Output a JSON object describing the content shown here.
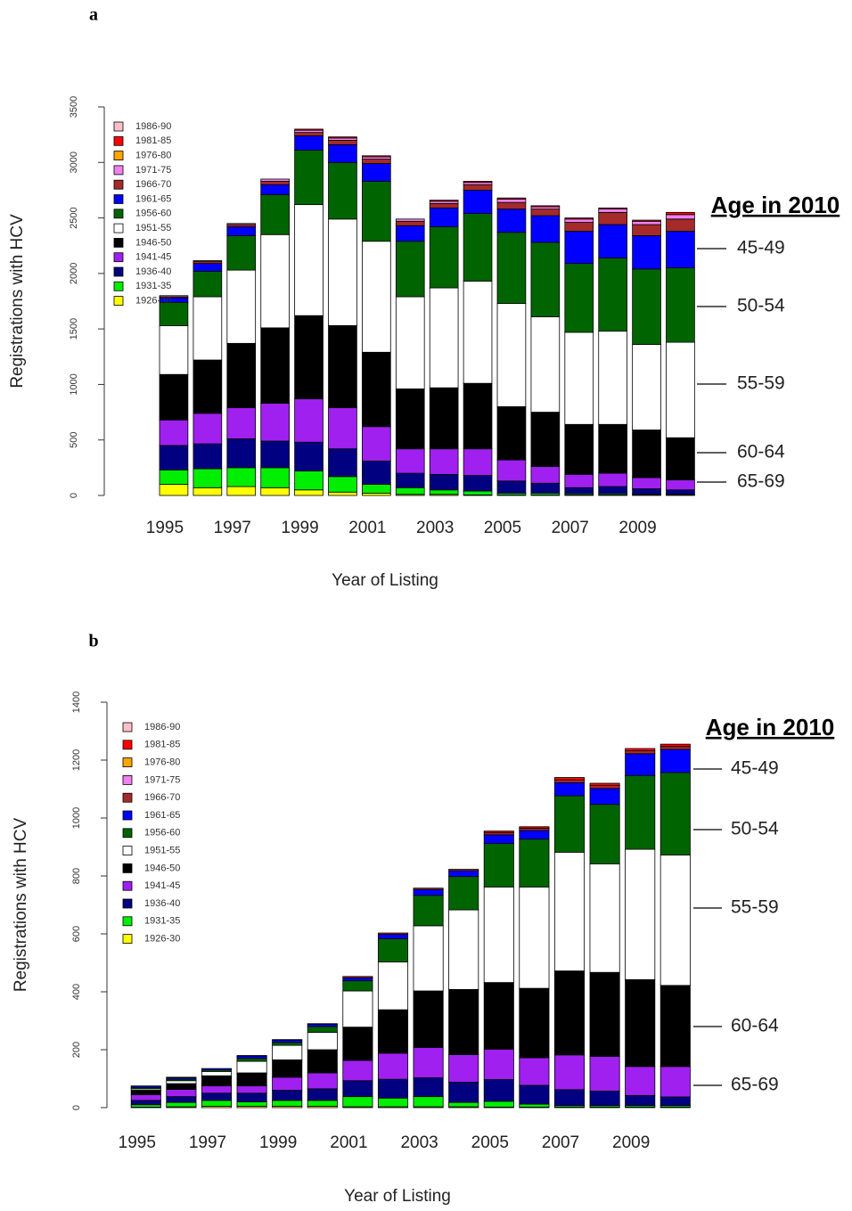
{
  "chart_data": [
    {
      "type": "bar",
      "stacked": true,
      "title": "a",
      "y_label": "Registrations with HCV",
      "x_label": "Year of Listing",
      "categories": [
        "1995",
        null,
        "1997",
        null,
        "1999",
        null,
        "2001",
        null,
        "2003",
        null,
        "2005",
        null,
        "2007",
        null,
        "2009",
        null
      ],
      "ylim": [
        0,
        3500
      ],
      "yticks": [
        0,
        500,
        1000,
        1500,
        2000,
        2500,
        3000,
        3500
      ],
      "annotation_title": "Age in 2010",
      "annotations": [
        "45-49",
        "50-54",
        "55-59",
        "60-64",
        "65-69"
      ],
      "series": [
        {
          "name": "1926-30",
          "color": "#ffff00",
          "values": [
            100,
            70,
            80,
            70,
            50,
            30,
            20,
            10,
            10,
            5,
            5,
            5,
            5,
            5,
            5,
            5
          ]
        },
        {
          "name": "1931-35",
          "color": "#00ee00",
          "values": [
            130,
            170,
            170,
            180,
            170,
            140,
            80,
            60,
            40,
            35,
            15,
            15,
            10,
            10,
            5,
            5
          ]
        },
        {
          "name": "1936-40",
          "color": "#000080",
          "values": [
            220,
            225,
            260,
            240,
            260,
            250,
            210,
            130,
            140,
            140,
            110,
            90,
            55,
            65,
            50,
            40
          ]
        },
        {
          "name": "1941-45",
          "color": "#a020f0",
          "values": [
            230,
            275,
            280,
            340,
            390,
            370,
            310,
            220,
            230,
            240,
            190,
            150,
            120,
            120,
            100,
            90
          ]
        },
        {
          "name": "1946-50",
          "color": "#000000",
          "values": [
            410,
            480,
            580,
            680,
            750,
            740,
            670,
            540,
            550,
            590,
            480,
            490,
            450,
            440,
            430,
            380
          ]
        },
        {
          "name": "1951-55",
          "color": "#ffffff",
          "values": [
            440,
            570,
            660,
            840,
            1000,
            960,
            1000,
            830,
            900,
            920,
            930,
            860,
            830,
            840,
            770,
            860
          ]
        },
        {
          "name": "1956-60",
          "color": "#006400",
          "values": [
            210,
            230,
            310,
            360,
            490,
            510,
            540,
            500,
            550,
            610,
            640,
            670,
            620,
            660,
            680,
            670
          ]
        },
        {
          "name": "1961-65",
          "color": "#0000ff",
          "values": [
            40,
            70,
            80,
            90,
            130,
            160,
            160,
            140,
            170,
            210,
            210,
            240,
            290,
            300,
            300,
            330
          ]
        },
        {
          "name": "1966-70",
          "color": "#a52a2a",
          "values": [
            10,
            20,
            20,
            30,
            30,
            40,
            40,
            40,
            40,
            50,
            60,
            60,
            80,
            110,
            100,
            110
          ]
        },
        {
          "name": "1971-75",
          "color": "#ee82ee",
          "values": [
            10,
            5,
            10,
            20,
            20,
            20,
            20,
            20,
            20,
            20,
            30,
            20,
            30,
            30,
            30,
            40
          ]
        },
        {
          "name": "1976-80",
          "color": "#ffa500",
          "values": [
            0,
            0,
            0,
            0,
            0,
            0,
            0,
            0,
            0,
            0,
            0,
            0,
            0,
            0,
            0,
            0
          ]
        },
        {
          "name": "1981-85",
          "color": "#ff0000",
          "values": [
            0,
            0,
            0,
            0,
            10,
            10,
            10,
            0,
            10,
            10,
            10,
            10,
            10,
            10,
            10,
            20
          ]
        },
        {
          "name": "1986-90",
          "color": "#ffc0cb",
          "values": [
            0,
            0,
            0,
            0,
            0,
            0,
            0,
            0,
            0,
            0,
            0,
            0,
            0,
            0,
            0,
            0
          ]
        }
      ]
    },
    {
      "type": "bar",
      "stacked": true,
      "title": "b",
      "y_label": "Registrations with HCV",
      "x_label": "Year of Listing",
      "categories": [
        "1995",
        null,
        "1997",
        null,
        "1999",
        null,
        "2001",
        null,
        "2003",
        null,
        "2005",
        null,
        "2007",
        null,
        "2009",
        null
      ],
      "ylim": [
        0,
        1400
      ],
      "yticks": [
        0,
        200,
        400,
        600,
        800,
        1000,
        1200,
        1400
      ],
      "annotation_title": "Age in 2010",
      "annotations": [
        "45-49",
        "50-54",
        "55-59",
        "60-64",
        "65-69"
      ],
      "series": [
        {
          "name": "1926-30",
          "color": "#ffff00",
          "values": [
            2,
            3,
            5,
            5,
            5,
            5,
            3,
            3,
            3,
            3,
            2,
            2,
            2,
            2,
            2,
            2
          ]
        },
        {
          "name": "1931-35",
          "color": "#00ee00",
          "values": [
            8,
            15,
            20,
            15,
            20,
            20,
            35,
            30,
            35,
            15,
            20,
            10,
            5,
            5,
            5,
            5
          ]
        },
        {
          "name": "1936-40",
          "color": "#000080",
          "values": [
            15,
            20,
            25,
            30,
            35,
            40,
            55,
            65,
            65,
            70,
            75,
            65,
            55,
            50,
            35,
            30
          ]
        },
        {
          "name": "1941-45",
          "color": "#a020f0",
          "values": [
            20,
            25,
            25,
            25,
            45,
            55,
            70,
            90,
            105,
            95,
            105,
            95,
            120,
            120,
            100,
            105
          ]
        },
        {
          "name": "1946-50",
          "color": "#000000",
          "values": [
            15,
            20,
            35,
            45,
            60,
            80,
            115,
            150,
            195,
            225,
            230,
            240,
            290,
            290,
            300,
            280
          ]
        },
        {
          "name": "1951-55",
          "color": "#ffffff",
          "values": [
            5,
            10,
            15,
            40,
            50,
            60,
            125,
            165,
            225,
            275,
            330,
            350,
            410,
            375,
            450,
            450
          ]
        },
        {
          "name": "1956-60",
          "color": "#006400",
          "values": [
            5,
            5,
            5,
            10,
            10,
            20,
            35,
            80,
            105,
            115,
            150,
            165,
            195,
            205,
            255,
            285
          ]
        },
        {
          "name": "1961-65",
          "color": "#0000ff",
          "values": [
            5,
            5,
            5,
            8,
            8,
            8,
            10,
            15,
            20,
            20,
            30,
            30,
            45,
            55,
            75,
            80
          ]
        },
        {
          "name": "1966-70",
          "color": "#a52a2a",
          "values": [
            0,
            2,
            0,
            2,
            2,
            2,
            5,
            5,
            5,
            5,
            8,
            8,
            10,
            10,
            10,
            10
          ]
        },
        {
          "name": "1971-75",
          "color": "#ee82ee",
          "values": [
            0,
            0,
            0,
            0,
            0,
            0,
            0,
            0,
            0,
            0,
            0,
            0,
            0,
            0,
            0,
            0
          ]
        },
        {
          "name": "1976-80",
          "color": "#ffa500",
          "values": [
            0,
            0,
            0,
            0,
            0,
            0,
            0,
            0,
            0,
            0,
            0,
            0,
            0,
            0,
            0,
            0
          ]
        },
        {
          "name": "1981-85",
          "color": "#ff0000",
          "values": [
            0,
            0,
            0,
            0,
            0,
            0,
            0,
            0,
            0,
            0,
            5,
            5,
            8,
            8,
            8,
            8
          ]
        },
        {
          "name": "1986-90",
          "color": "#ffc0cb",
          "values": [
            0,
            0,
            0,
            0,
            0,
            0,
            0,
            0,
            0,
            0,
            0,
            0,
            0,
            0,
            0,
            0
          ]
        }
      ]
    }
  ]
}
